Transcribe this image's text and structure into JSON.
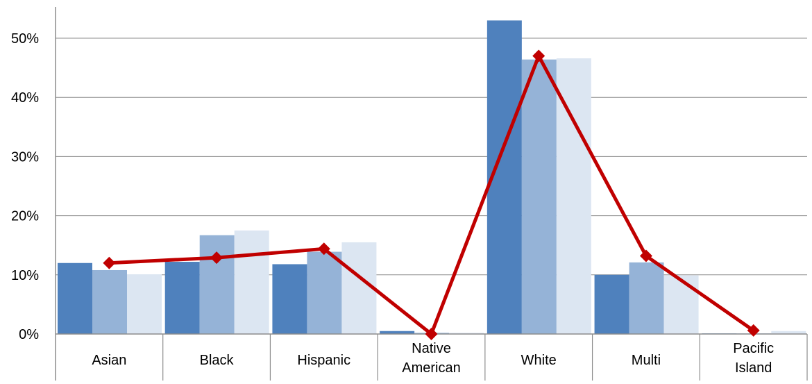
{
  "chart_data": {
    "type": "bar",
    "categories": [
      "Asian",
      "Black",
      "Hispanic",
      "Native American",
      "White",
      "Multi",
      "Pacific Island"
    ],
    "category_label_lines": [
      [
        "Asian"
      ],
      [
        "Black"
      ],
      [
        "Hispanic"
      ],
      [
        "Native",
        "American"
      ],
      [
        "White"
      ],
      [
        "Multi"
      ],
      [
        "Pacific",
        "Island"
      ]
    ],
    "series": [
      {
        "type": "bar",
        "color": "#4f81bd",
        "values": [
          12.0,
          12.2,
          11.8,
          0.5,
          53.0,
          10.0,
          0.1
        ]
      },
      {
        "type": "bar",
        "color": "#95b3d7",
        "values": [
          10.8,
          16.7,
          13.9,
          0.2,
          46.4,
          12.1,
          0.1
        ]
      },
      {
        "type": "bar",
        "color": "#dce6f2",
        "values": [
          10.1,
          17.5,
          15.5,
          0.2,
          46.6,
          9.9,
          0.5
        ]
      },
      {
        "type": "line",
        "color": "#c00000",
        "marker": "diamond",
        "values": [
          12.0,
          12.9,
          14.4,
          0.0,
          47.0,
          13.2,
          0.6
        ]
      }
    ],
    "y_ticks": [
      "0%",
      "10%",
      "20%",
      "30%",
      "40%",
      "50%"
    ],
    "ylim": [
      0,
      56
    ],
    "grid": true,
    "legend": "none",
    "title": "",
    "xlabel": "",
    "ylabel": ""
  }
}
